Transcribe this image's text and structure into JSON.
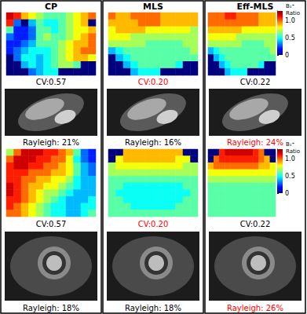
{
  "chart_data": [
    {
      "type": "heatmap",
      "title": "CP",
      "annotation": {
        "text": "CV:0.57",
        "color": "#000000"
      },
      "cells": [
        [
          1.2,
          1.1,
          0.9,
          0.8,
          0.7,
          0.6,
          0.6,
          0.6,
          0.7,
          0.8,
          0.9,
          1.0
        ],
        [
          1.1,
          0.3,
          0.0,
          0.4,
          0.6,
          0.5,
          0.5,
          0.6,
          0.7,
          0.8,
          0.9,
          0.0
        ],
        [
          0.6,
          0.2,
          0.2,
          0.3,
          0.6,
          0.6,
          0.5,
          0.6,
          0.7,
          0.8,
          0.8,
          0.9
        ],
        [
          0.3,
          0.2,
          0.2,
          0.3,
          0.6,
          0.7,
          0.6,
          0.6,
          0.7,
          0.8,
          0.9,
          1.0
        ],
        [
          0.2,
          0.2,
          0.3,
          0.4,
          0.6,
          0.6,
          0.6,
          0.7,
          0.8,
          0.9,
          0.9,
          1.0
        ],
        [
          0.2,
          0.3,
          0.4,
          0.5,
          0.5,
          0.5,
          0.6,
          0.7,
          0.8,
          0.9,
          1.0,
          1.0
        ],
        [
          0.0,
          0.3,
          0.5,
          0.5,
          0.4,
          0.5,
          0.6,
          0.7,
          0.8,
          0.9,
          0.9,
          0.8
        ],
        [
          0.0,
          0.0,
          0.4,
          0.5,
          0.4,
          0.5,
          0.6,
          0.7,
          0.7,
          0.6,
          0.0,
          0.0
        ],
        [
          0.0,
          0.0,
          0.0,
          0.3,
          0.4,
          0.5,
          0.5,
          0.0,
          0.0,
          0.0,
          0.0,
          0.0
        ]
      ]
    },
    {
      "type": "heatmap",
      "title": "MLS",
      "annotation": {
        "text": "CV:0.20",
        "color": "#ff0000"
      },
      "cells": [
        [
          1.0,
          0.9,
          0.9,
          1.0,
          1.0,
          1.0,
          1.0,
          0.9,
          0.9,
          0.9,
          0.9,
          0.9
        ],
        [
          0.9,
          0.9,
          0.9,
          0.9,
          1.0,
          1.0,
          1.0,
          0.9,
          0.9,
          0.9,
          0.9,
          0.9
        ],
        [
          0.8,
          0.9,
          0.9,
          0.9,
          0.9,
          0.8,
          0.8,
          0.8,
          0.8,
          0.8,
          0.8,
          0.7
        ],
        [
          0.8,
          0.8,
          0.8,
          0.7,
          0.7,
          0.7,
          0.7,
          0.7,
          0.7,
          0.7,
          0.7,
          0.7
        ],
        [
          0.7,
          0.7,
          0.7,
          0.7,
          0.7,
          0.6,
          0.6,
          0.6,
          0.6,
          0.6,
          0.7,
          0.7
        ],
        [
          0.4,
          0.5,
          0.6,
          0.6,
          0.6,
          0.6,
          0.6,
          0.6,
          0.6,
          0.6,
          0.6,
          0.7
        ],
        [
          0.0,
          0.4,
          0.5,
          0.6,
          0.6,
          0.6,
          0.6,
          0.6,
          0.6,
          0.6,
          0.6,
          0.6
        ],
        [
          0.0,
          0.0,
          0.4,
          0.5,
          0.6,
          0.6,
          0.6,
          0.6,
          0.6,
          0.5,
          0.0,
          0.0
        ],
        [
          0.0,
          0.0,
          0.0,
          0.4,
          0.5,
          0.5,
          0.5,
          0.0,
          0.0,
          0.0,
          0.0,
          0.0
        ]
      ]
    },
    {
      "type": "heatmap",
      "title": "Eff-MLS",
      "annotation": {
        "text": "CV:0.22",
        "color": "#000000"
      },
      "colorbar": {
        "title": "B₁⁺ Ratio",
        "range": [
          0,
          1.3
        ],
        "ticks": [
          0,
          0.5,
          {
            "value": 1,
            "label": "1.0"
          }
        ]
      },
      "cells": [
        [
          1.0,
          1.0,
          1.0,
          1.1,
          1.1,
          1.0,
          1.0,
          1.0,
          1.0,
          0.9,
          0.9,
          0.9
        ],
        [
          1.0,
          1.0,
          1.0,
          1.0,
          1.0,
          1.0,
          1.0,
          1.0,
          1.0,
          0.9,
          0.9,
          0.9
        ],
        [
          0.9,
          0.9,
          0.9,
          0.9,
          0.9,
          0.9,
          0.8,
          0.8,
          0.8,
          0.8,
          0.8,
          0.8
        ],
        [
          0.8,
          0.8,
          0.8,
          0.8,
          0.8,
          0.7,
          0.7,
          0.7,
          0.7,
          0.7,
          0.7,
          0.7
        ],
        [
          0.7,
          0.7,
          0.7,
          0.7,
          0.7,
          0.7,
          0.6,
          0.6,
          0.6,
          0.6,
          0.7,
          0.7
        ],
        [
          0.4,
          0.5,
          0.6,
          0.6,
          0.6,
          0.6,
          0.6,
          0.6,
          0.6,
          0.6,
          0.6,
          0.7
        ],
        [
          0.0,
          0.4,
          0.5,
          0.6,
          0.6,
          0.6,
          0.6,
          0.6,
          0.6,
          0.6,
          0.6,
          0.6
        ],
        [
          0.0,
          0.0,
          0.4,
          0.5,
          0.6,
          0.6,
          0.6,
          0.6,
          0.6,
          0.5,
          0.0,
          0.0
        ],
        [
          0.0,
          0.0,
          0.0,
          0.4,
          0.5,
          0.5,
          0.5,
          0.0,
          0.0,
          0.0,
          0.0,
          0.0
        ]
      ]
    },
    {
      "type": "heatmap",
      "annotation": {
        "text": "CV:0.57",
        "color": "#000000"
      },
      "cells": [
        [
          0.7,
          1.0,
          1.2,
          1.2,
          1.2,
          1.1,
          1.1,
          1.0,
          0.9,
          0.6,
          0.3,
          0.2
        ],
        [
          1.0,
          1.2,
          1.2,
          1.2,
          1.1,
          1.1,
          1.0,
          1.0,
          0.8,
          0.5,
          0.3,
          0.2
        ],
        [
          1.1,
          1.2,
          1.2,
          1.1,
          1.1,
          1.0,
          1.0,
          0.9,
          0.8,
          0.6,
          0.4,
          0.3
        ],
        [
          1.1,
          1.1,
          1.1,
          1.0,
          1.0,
          1.0,
          0.9,
          0.9,
          0.8,
          0.6,
          0.4,
          0.3
        ],
        [
          1.1,
          1.1,
          1.0,
          1.0,
          0.9,
          0.9,
          0.8,
          0.8,
          0.7,
          0.5,
          0.4,
          0.4
        ],
        [
          1.2,
          1.1,
          1.0,
          0.9,
          0.9,
          0.8,
          0.8,
          0.7,
          0.6,
          0.5,
          0.4,
          0.4
        ],
        [
          1.2,
          1.1,
          1.0,
          0.9,
          0.8,
          0.7,
          0.7,
          0.6,
          0.5,
          0.4,
          0.4,
          0.4
        ],
        [
          1.1,
          1.1,
          1.0,
          0.9,
          0.8,
          0.7,
          0.6,
          0.5,
          0.4,
          0.4,
          0.4,
          0.5
        ],
        [
          1.1,
          1.0,
          0.9,
          0.8,
          0.7,
          0.6,
          0.5,
          0.5,
          0.4,
          0.4,
          0.5,
          0.5
        ],
        [
          1.0,
          1.0,
          0.9,
          0.8,
          0.7,
          0.6,
          0.5,
          0.5,
          0.4,
          0.4,
          0.5,
          0.6
        ]
      ]
    },
    {
      "type": "heatmap",
      "annotation": {
        "text": "CV:0.20",
        "color": "#ff0000"
      },
      "cells": [
        [
          0.0,
          0.0,
          0.9,
          0.9,
          0.9,
          0.9,
          0.9,
          0.9,
          0.9,
          0.9,
          0.0,
          0.0
        ],
        [
          0.0,
          0.8,
          0.9,
          0.9,
          0.9,
          0.9,
          0.9,
          0.9,
          0.9,
          0.8,
          0.8,
          0.0
        ],
        [
          0.7,
          0.8,
          0.8,
          0.8,
          0.8,
          0.8,
          0.8,
          0.8,
          0.8,
          0.8,
          0.7,
          0.7
        ],
        [
          0.7,
          0.7,
          0.7,
          0.7,
          0.7,
          0.7,
          0.7,
          0.7,
          0.7,
          0.7,
          0.7,
          0.7
        ],
        [
          0.6,
          0.6,
          0.6,
          0.6,
          0.6,
          0.6,
          0.6,
          0.6,
          0.6,
          0.6,
          0.6,
          0.6
        ],
        [
          0.6,
          0.6,
          0.5,
          0.5,
          0.5,
          0.5,
          0.5,
          0.5,
          0.5,
          0.5,
          0.6,
          0.6
        ],
        [
          0.6,
          0.5,
          0.5,
          0.5,
          0.5,
          0.5,
          0.5,
          0.5,
          0.5,
          0.5,
          0.5,
          0.6
        ],
        [
          0.6,
          0.6,
          0.5,
          0.5,
          0.5,
          0.5,
          0.5,
          0.5,
          0.5,
          0.5,
          0.6,
          0.6
        ],
        [
          0.6,
          0.6,
          0.6,
          0.5,
          0.5,
          0.5,
          0.5,
          0.5,
          0.5,
          0.6,
          0.6,
          0.6
        ],
        [
          0.6,
          0.6,
          0.6,
          0.6,
          0.6,
          0.6,
          0.6,
          0.6,
          0.6,
          0.6,
          0.6,
          0.6
        ]
      ]
    },
    {
      "type": "heatmap",
      "annotation": {
        "text": "CV:0.22",
        "color": "#000000"
      },
      "colorbar": {
        "title": "B₁⁺ Ratio",
        "range": [
          0,
          1.3
        ],
        "ticks": [
          0,
          0.5,
          {
            "value": 1,
            "label": "1.0"
          }
        ]
      },
      "cells": [
        [
          0.0,
          0.0,
          1.1,
          1.2,
          1.2,
          1.2,
          1.2,
          1.2,
          1.1,
          1.0,
          0.0,
          0.0
        ],
        [
          0.0,
          1.0,
          1.1,
          1.1,
          1.1,
          1.1,
          1.1,
          1.1,
          1.1,
          1.0,
          0.9,
          0.0
        ],
        [
          0.9,
          1.0,
          1.0,
          1.0,
          1.0,
          1.0,
          1.0,
          1.0,
          1.0,
          0.9,
          0.9,
          0.8
        ],
        [
          0.8,
          0.8,
          0.8,
          0.8,
          0.8,
          0.8,
          0.8,
          0.8,
          0.8,
          0.8,
          0.8,
          0.8
        ],
        [
          0.7,
          0.7,
          0.7,
          0.7,
          0.7,
          0.7,
          0.7,
          0.7,
          0.7,
          0.7,
          0.7,
          0.7
        ],
        [
          0.6,
          0.6,
          0.6,
          0.6,
          0.6,
          0.6,
          0.6,
          0.6,
          0.6,
          0.6,
          0.6,
          0.6
        ],
        [
          0.6,
          0.6,
          0.6,
          0.6,
          0.6,
          0.6,
          0.6,
          0.6,
          0.6,
          0.6,
          0.6,
          0.6
        ],
        [
          0.6,
          0.6,
          0.6,
          0.6,
          0.6,
          0.6,
          0.6,
          0.6,
          0.6,
          0.6,
          0.6,
          0.6
        ],
        [
          0.6,
          0.6,
          0.6,
          0.6,
          0.6,
          0.6,
          0.6,
          0.6,
          0.6,
          0.6,
          0.6,
          0.6
        ],
        [
          0.6,
          0.6,
          0.6,
          0.6,
          0.6,
          0.6,
          0.6,
          0.6,
          0.6,
          0.6,
          0.6,
          0.6
        ]
      ]
    }
  ],
  "images": [
    {
      "caption": "Rayleigh: 21%",
      "color": "#000000"
    },
    {
      "caption": "Rayleigh: 16%",
      "color": "#000000"
    },
    {
      "caption": "Rayleigh: 24%",
      "color": "#ff0000"
    },
    {
      "caption": "Rayleigh: 18%",
      "color": "#000000"
    },
    {
      "caption": "Rayleigh: 18%",
      "color": "#000000"
    },
    {
      "caption": "Rayleigh: 26%",
      "color": "#ff0000"
    }
  ]
}
